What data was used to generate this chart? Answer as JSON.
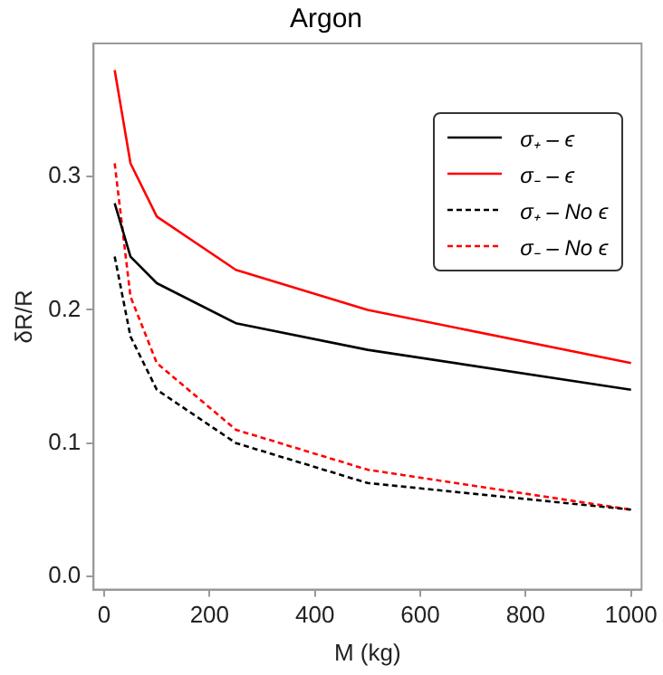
{
  "chart_data": {
    "type": "line",
    "title": "Argon",
    "xlabel": "M (kg)",
    "ylabel": "δR/R",
    "x": [
      20,
      50,
      100,
      250,
      500,
      1000
    ],
    "xlim": [
      -20,
      1020
    ],
    "xticks": [
      0,
      200,
      400,
      600,
      800,
      1000
    ],
    "ylim": [
      -0.01,
      0.4
    ],
    "yticks": [
      {
        "value": 0,
        "label": "0.0"
      },
      0.1,
      0.2,
      0.3
    ],
    "legend": "top right",
    "marker": "none",
    "grid": false,
    "series": [
      {
        "name": "σ₊ – ϵ",
        "color": "#000000",
        "line_style": "solid",
        "values": [
          0.28,
          0.24,
          0.22,
          0.19,
          0.17,
          0.14
        ]
      },
      {
        "name": "σ₋ – ϵ",
        "color": "#ff0000",
        "line_style": "solid",
        "values": [
          0.38,
          0.31,
          0.27,
          0.23,
          0.2,
          0.16
        ]
      },
      {
        "name": "σ₊ – No ϵ",
        "color": "#000000",
        "line_style": "dashed",
        "values": [
          0.24,
          0.18,
          0.14,
          0.1,
          0.07,
          0.05
        ]
      },
      {
        "name": "σ₋ – No ϵ",
        "color": "#ff0000",
        "line_style": "dashed",
        "values": [
          0.31,
          0.21,
          0.16,
          0.11,
          0.08,
          0.05
        ]
      }
    ]
  }
}
